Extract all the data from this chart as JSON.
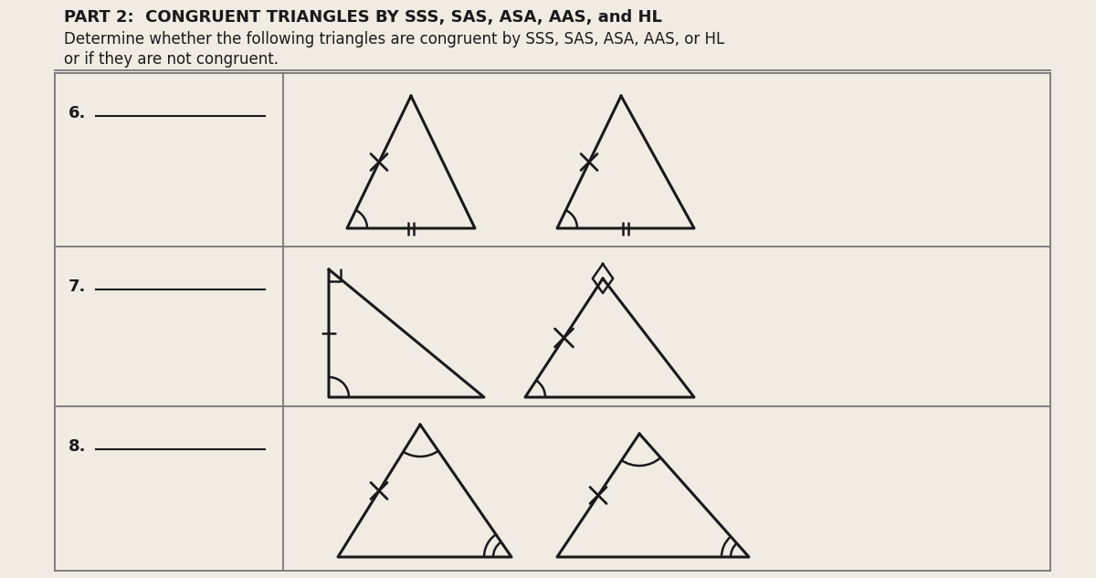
{
  "title_line1": "PART 2:  CONGRUENT TRIANGLES BY SSS, SAS, ASA, AAS, and HL",
  "title_line2": "Determine whether the following triangles are congruent by SSS, SAS, ASA, AAS, or HL",
  "title_line3": "or if they are not congruent.",
  "bg_color": "#f0ece4",
  "line_color": "#1a1a1a",
  "grid_color": "#777777",
  "font_size_title": 13,
  "font_size_label": 13
}
